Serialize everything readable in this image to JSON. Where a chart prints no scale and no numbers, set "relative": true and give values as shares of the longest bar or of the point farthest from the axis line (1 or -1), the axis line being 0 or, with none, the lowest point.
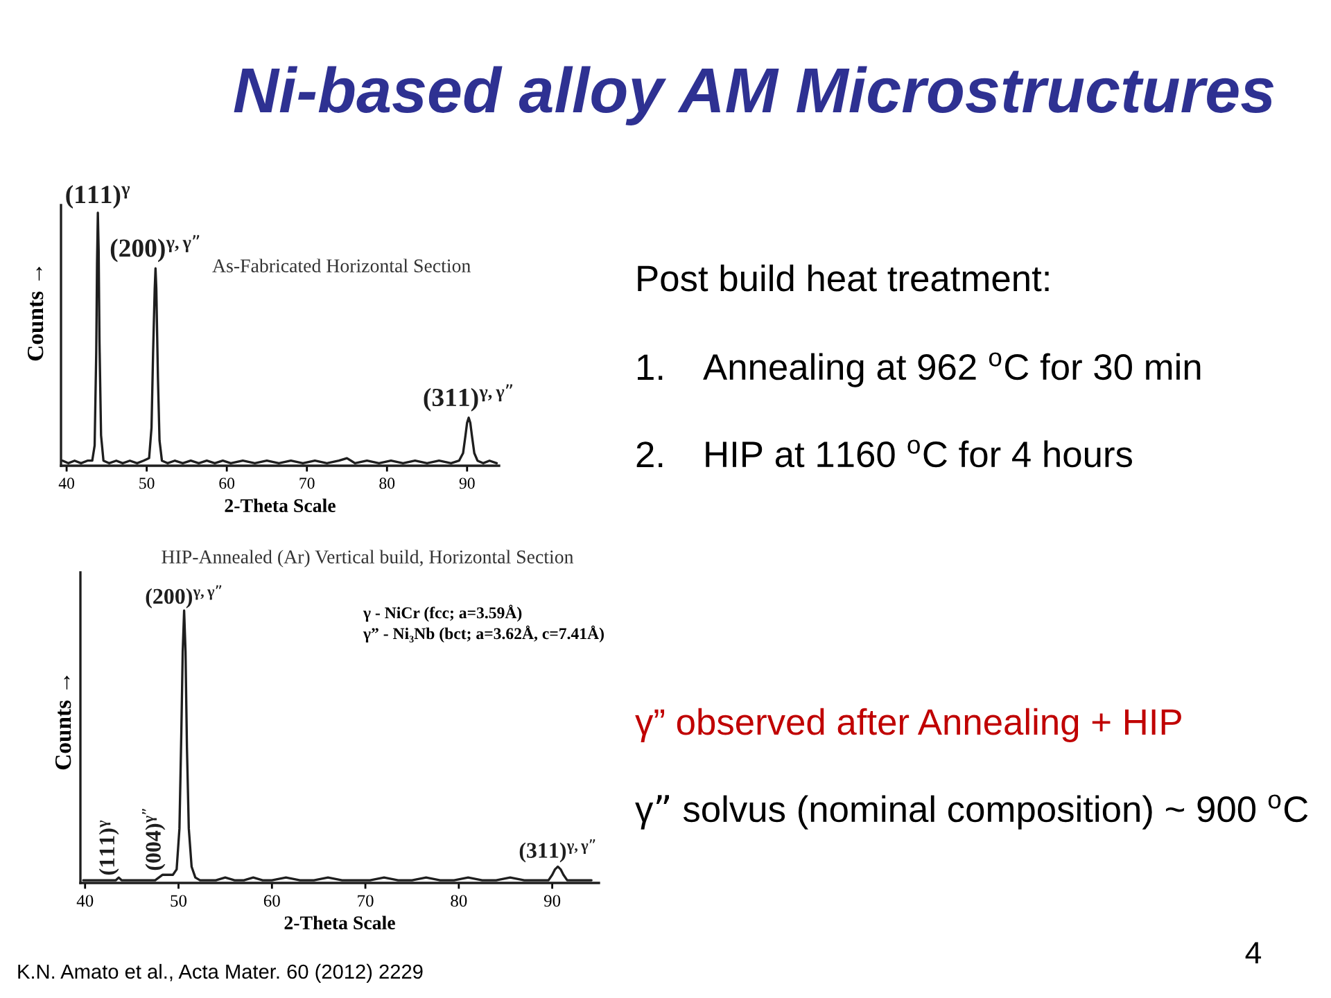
{
  "chart_data": [
    {
      "type": "line",
      "title": "As-Fabricated Horizontal Section",
      "xlabel": "2-Theta Scale",
      "ylabel": "Counts →",
      "relative": true,
      "xlim": [
        39.3,
        94
      ],
      "xticks": [
        40,
        50,
        60,
        70,
        80,
        90
      ],
      "tick_labels": "x",
      "series": [
        {
          "color": "#1e1e1e",
          "x": [
            39.5,
            40.2,
            41.0,
            41.8,
            42.6,
            43.2,
            43.5,
            43.7,
            43.8,
            43.9,
            44.0,
            44.1,
            44.3,
            44.6,
            45.3,
            46.2,
            47.0,
            47.9,
            48.8,
            49.6,
            50.3,
            50.6,
            50.8,
            51.0,
            51.1,
            51.2,
            51.4,
            51.6,
            51.9,
            52.6,
            53.5,
            54.5,
            55.5,
            56.5,
            57.5,
            58.5,
            59.5,
            60.5,
            62,
            63.5,
            65,
            66.5,
            68,
            69.5,
            71,
            72.5,
            74,
            75,
            76,
            77.5,
            79,
            80.5,
            82,
            83.5,
            85,
            86.5,
            88,
            89.0,
            89.5,
            89.8,
            90.0,
            90.2,
            90.4,
            90.6,
            90.9,
            91.3,
            92.0,
            92.8,
            93.7
          ],
          "values": [
            0.02,
            0.01,
            0.02,
            0.01,
            0.02,
            0.02,
            0.08,
            0.45,
            0.8,
            1.0,
            0.85,
            0.5,
            0.12,
            0.02,
            0.01,
            0.02,
            0.01,
            0.02,
            0.01,
            0.02,
            0.03,
            0.15,
            0.45,
            0.7,
            0.78,
            0.7,
            0.35,
            0.1,
            0.02,
            0.01,
            0.02,
            0.01,
            0.02,
            0.01,
            0.02,
            0.01,
            0.02,
            0.01,
            0.02,
            0.01,
            0.02,
            0.01,
            0.02,
            0.01,
            0.02,
            0.01,
            0.02,
            0.03,
            0.01,
            0.02,
            0.01,
            0.02,
            0.01,
            0.02,
            0.01,
            0.02,
            0.01,
            0.02,
            0.05,
            0.12,
            0.17,
            0.19,
            0.17,
            0.12,
            0.05,
            0.02,
            0.01,
            0.02,
            0.01
          ]
        }
      ],
      "annotations": [
        {
          "text": "(111)$^{γ}$",
          "x": 43.9,
          "y": 1.0
        },
        {
          "text": "(200)$^{γ,γ”}$",
          "x": 51.1,
          "y": 0.78
        },
        {
          "text": "(311)$^{γ,γ”}$",
          "x": 90.2,
          "y": 0.19
        }
      ]
    },
    {
      "type": "line",
      "title": "HIP-Annealed (Ar) Vertical build, Horizontal Section",
      "xlabel": "2-Theta Scale",
      "ylabel": "Counts →",
      "relative": true,
      "xlim": [
        39.5,
        95
      ],
      "xticks": [
        40,
        50,
        60,
        70,
        80,
        90
      ],
      "tick_labels": "x",
      "series": [
        {
          "color": "#1e1e1e",
          "x": [
            39.8,
            40.6,
            41.4,
            42.2,
            42.9,
            43.3,
            43.6,
            43.9,
            44.4,
            45.2,
            46.0,
            46.8,
            47.5,
            47.9,
            48.3,
            48.6,
            49.0,
            49.4,
            49.8,
            50.1,
            50.3,
            50.45,
            50.6,
            50.75,
            50.9,
            51.1,
            51.4,
            51.8,
            52.3,
            53.0,
            54,
            55,
            56,
            57,
            58,
            59,
            60,
            61.5,
            63,
            64.5,
            66,
            67.5,
            69,
            70.5,
            72,
            73.5,
            75,
            76.5,
            78,
            79.5,
            81,
            82.5,
            84,
            85.5,
            87,
            88.5,
            89.6,
            90.0,
            90.3,
            90.6,
            90.9,
            91.2,
            91.6,
            92.3,
            93.2,
            94.2
          ],
          "values": [
            0.01,
            0.01,
            0.01,
            0.01,
            0.01,
            0.01,
            0.02,
            0.01,
            0.01,
            0.01,
            0.01,
            0.01,
            0.01,
            0.02,
            0.03,
            0.03,
            0.03,
            0.03,
            0.05,
            0.2,
            0.55,
            0.85,
            1.0,
            0.85,
            0.5,
            0.2,
            0.06,
            0.02,
            0.01,
            0.01,
            0.01,
            0.02,
            0.01,
            0.01,
            0.02,
            0.01,
            0.01,
            0.02,
            0.01,
            0.01,
            0.02,
            0.01,
            0.01,
            0.01,
            0.02,
            0.01,
            0.01,
            0.02,
            0.01,
            0.01,
            0.02,
            0.01,
            0.01,
            0.02,
            0.01,
            0.01,
            0.01,
            0.03,
            0.05,
            0.06,
            0.05,
            0.03,
            0.01,
            0.01,
            0.01,
            0.01
          ]
        }
      ],
      "annotations": [
        {
          "text": "(111)$^{γ}$",
          "x": 43.6,
          "y": 0.02
        },
        {
          "text": "(004)$^{γ”}$",
          "x": 48.6,
          "y": 0.03
        },
        {
          "text": "(200)$^{γ,γ”}$",
          "x": 50.6,
          "y": 1.0
        },
        {
          "text": "(311)$^{γ,γ”}$",
          "x": 90.6,
          "y": 0.06
        },
        "γ - NiCr (fcc; a=3.59Å)",
        "γ” - Ni₃Nb (bct; a=3.62Å, c=7.41Å)",
        "K.N. Amato et al., Acta Mater. 60 (2012) 2229"
      ]
    },
    {
      "type": "other",
      "title": "Ni-based alloy AM Microstructures",
      "annotations": [
        "Post build heat treatment:",
        "1. Annealing at 962 $^{o}$C for 30 min",
        "2. HIP at 1160 $^{o}$C for 4 hours",
        "γ” observed after Annealing + HIP",
        "γ” solvus (nominal composition) ~ 900 $^{o}$C",
        "4"
      ]
    }
  ]
}
